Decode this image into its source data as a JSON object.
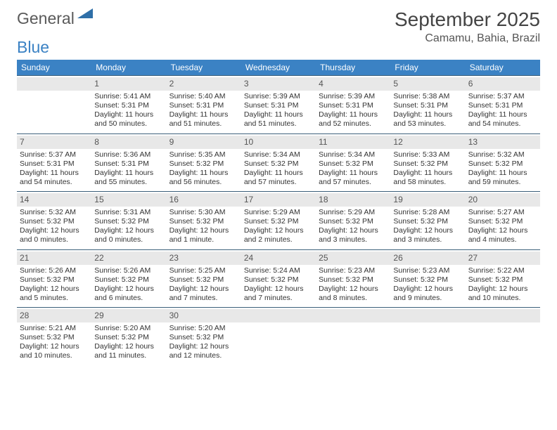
{
  "logo": {
    "word1": "General",
    "word2": "Blue"
  },
  "title": "September 2025",
  "location": "Camamu, Bahia, Brazil",
  "colors": {
    "header_bg": "#3b82c4",
    "header_text": "#ffffff",
    "daynum_bg": "#e8e8e8",
    "cell_border": "#3b5f7a",
    "text": "#333333",
    "logo_gray": "#5a5a5a",
    "logo_blue": "#3b82c4"
  },
  "days_of_week": [
    "Sunday",
    "Monday",
    "Tuesday",
    "Wednesday",
    "Thursday",
    "Friday",
    "Saturday"
  ],
  "first_weekday_offset": 1,
  "days": [
    {
      "n": 1,
      "sunrise": "5:41 AM",
      "sunset": "5:31 PM",
      "daylight": "11 hours and 50 minutes."
    },
    {
      "n": 2,
      "sunrise": "5:40 AM",
      "sunset": "5:31 PM",
      "daylight": "11 hours and 51 minutes."
    },
    {
      "n": 3,
      "sunrise": "5:39 AM",
      "sunset": "5:31 PM",
      "daylight": "11 hours and 51 minutes."
    },
    {
      "n": 4,
      "sunrise": "5:39 AM",
      "sunset": "5:31 PM",
      "daylight": "11 hours and 52 minutes."
    },
    {
      "n": 5,
      "sunrise": "5:38 AM",
      "sunset": "5:31 PM",
      "daylight": "11 hours and 53 minutes."
    },
    {
      "n": 6,
      "sunrise": "5:37 AM",
      "sunset": "5:31 PM",
      "daylight": "11 hours and 54 minutes."
    },
    {
      "n": 7,
      "sunrise": "5:37 AM",
      "sunset": "5:31 PM",
      "daylight": "11 hours and 54 minutes."
    },
    {
      "n": 8,
      "sunrise": "5:36 AM",
      "sunset": "5:31 PM",
      "daylight": "11 hours and 55 minutes."
    },
    {
      "n": 9,
      "sunrise": "5:35 AM",
      "sunset": "5:32 PM",
      "daylight": "11 hours and 56 minutes."
    },
    {
      "n": 10,
      "sunrise": "5:34 AM",
      "sunset": "5:32 PM",
      "daylight": "11 hours and 57 minutes."
    },
    {
      "n": 11,
      "sunrise": "5:34 AM",
      "sunset": "5:32 PM",
      "daylight": "11 hours and 57 minutes."
    },
    {
      "n": 12,
      "sunrise": "5:33 AM",
      "sunset": "5:32 PM",
      "daylight": "11 hours and 58 minutes."
    },
    {
      "n": 13,
      "sunrise": "5:32 AM",
      "sunset": "5:32 PM",
      "daylight": "11 hours and 59 minutes."
    },
    {
      "n": 14,
      "sunrise": "5:32 AM",
      "sunset": "5:32 PM",
      "daylight": "12 hours and 0 minutes."
    },
    {
      "n": 15,
      "sunrise": "5:31 AM",
      "sunset": "5:32 PM",
      "daylight": "12 hours and 0 minutes."
    },
    {
      "n": 16,
      "sunrise": "5:30 AM",
      "sunset": "5:32 PM",
      "daylight": "12 hours and 1 minute."
    },
    {
      "n": 17,
      "sunrise": "5:29 AM",
      "sunset": "5:32 PM",
      "daylight": "12 hours and 2 minutes."
    },
    {
      "n": 18,
      "sunrise": "5:29 AM",
      "sunset": "5:32 PM",
      "daylight": "12 hours and 3 minutes."
    },
    {
      "n": 19,
      "sunrise": "5:28 AM",
      "sunset": "5:32 PM",
      "daylight": "12 hours and 3 minutes."
    },
    {
      "n": 20,
      "sunrise": "5:27 AM",
      "sunset": "5:32 PM",
      "daylight": "12 hours and 4 minutes."
    },
    {
      "n": 21,
      "sunrise": "5:26 AM",
      "sunset": "5:32 PM",
      "daylight": "12 hours and 5 minutes."
    },
    {
      "n": 22,
      "sunrise": "5:26 AM",
      "sunset": "5:32 PM",
      "daylight": "12 hours and 6 minutes."
    },
    {
      "n": 23,
      "sunrise": "5:25 AM",
      "sunset": "5:32 PM",
      "daylight": "12 hours and 7 minutes."
    },
    {
      "n": 24,
      "sunrise": "5:24 AM",
      "sunset": "5:32 PM",
      "daylight": "12 hours and 7 minutes."
    },
    {
      "n": 25,
      "sunrise": "5:23 AM",
      "sunset": "5:32 PM",
      "daylight": "12 hours and 8 minutes."
    },
    {
      "n": 26,
      "sunrise": "5:23 AM",
      "sunset": "5:32 PM",
      "daylight": "12 hours and 9 minutes."
    },
    {
      "n": 27,
      "sunrise": "5:22 AM",
      "sunset": "5:32 PM",
      "daylight": "12 hours and 10 minutes."
    },
    {
      "n": 28,
      "sunrise": "5:21 AM",
      "sunset": "5:32 PM",
      "daylight": "12 hours and 10 minutes."
    },
    {
      "n": 29,
      "sunrise": "5:20 AM",
      "sunset": "5:32 PM",
      "daylight": "12 hours and 11 minutes."
    },
    {
      "n": 30,
      "sunrise": "5:20 AM",
      "sunset": "5:32 PM",
      "daylight": "12 hours and 12 minutes."
    }
  ],
  "labels": {
    "sunrise": "Sunrise:",
    "sunset": "Sunset:",
    "daylight": "Daylight:"
  }
}
